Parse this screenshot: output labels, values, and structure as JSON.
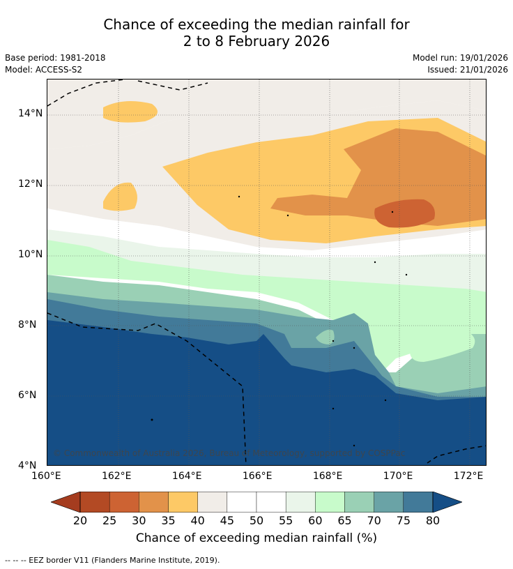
{
  "title": {
    "line1": "Chance of exceeding the median rainfall for",
    "line2": "2 to 8 February 2026"
  },
  "meta": {
    "base_period": "Base period: 1981-2018",
    "model": "Model: ACCESS-S2",
    "model_run": "Model run: 19/01/2026",
    "issued": "Issued: 21/01/2026"
  },
  "map": {
    "copyright": "© Commonwealth of Australia 2026, Bureau of Meteorology, supported by COSPPac",
    "lon_labels": [
      "160°E",
      "162°E",
      "164°E",
      "166°E",
      "168°E",
      "170°E",
      "172°E"
    ],
    "lat_labels": [
      "14°N",
      "12°N",
      "10°N",
      "8°N",
      "6°N",
      "4°N"
    ],
    "lon_values": [
      160,
      162,
      164,
      166,
      168,
      170,
      172
    ],
    "lat_values": [
      14,
      12,
      10,
      8,
      6,
      4
    ],
    "lon_range": [
      160,
      172.5
    ],
    "lat_range": [
      4,
      15
    ]
  },
  "colorbar": {
    "title": "Chance of exceeding median rainfall (%)",
    "tick_labels": [
      "20",
      "25",
      "30",
      "35",
      "40",
      "45",
      "50",
      "55",
      "60",
      "65",
      "70",
      "75",
      "80"
    ],
    "low_color": "#a53c1f",
    "high_color": "#154e86",
    "colors": [
      "#b34a24",
      "#cd6333",
      "#e2924a",
      "#fdc966",
      "#f1ede8",
      "#ffffff",
      "#ffffff",
      "#eaf5ea",
      "#c8fbcb",
      "#9ad0b5",
      "#6aa3a6",
      "#427a99"
    ]
  },
  "footer": "--  --  -- EEZ border V11 (Flanders Marine Institute, 2019)."
}
